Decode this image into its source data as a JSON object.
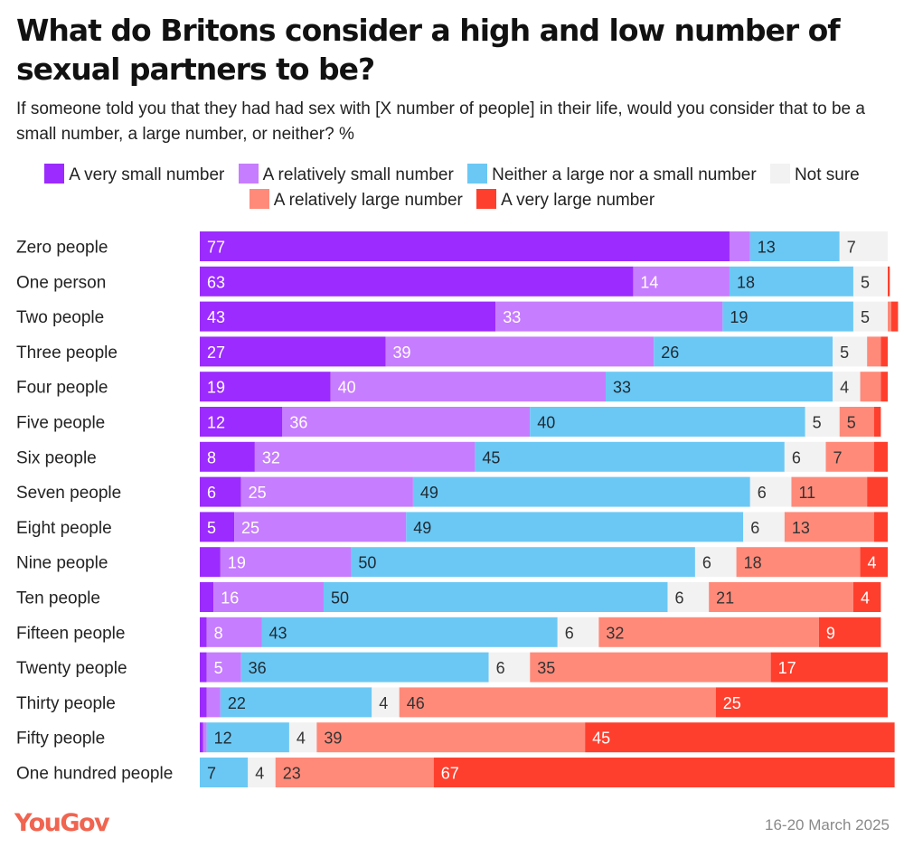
{
  "header": {
    "title": "What do Britons consider a high and low number of sexual partners to be?",
    "subtitle": "If someone told you that they had had sex with [X number of people] in their life, would you consider that to be a small number, a large number, or neither? %"
  },
  "footer": {
    "logo": "YouGov",
    "date": "16-20 March 2025"
  },
  "chart_data": {
    "type": "bar",
    "orientation": "horizontal",
    "stacked": true,
    "title": "What do Britons consider a high and low number of sexual partners to be?",
    "xlabel": "",
    "ylabel": "",
    "xlim": [
      0,
      100
    ],
    "grid": false,
    "legend_position": "top",
    "categories": [
      "Zero people",
      "One person",
      "Two people",
      "Three people",
      "Four people",
      "Five people",
      "Six people",
      "Seven people",
      "Eight people",
      "Nine people",
      "Ten people",
      "Fifteen people",
      "Twenty people",
      "Thirty people",
      "Fifty people",
      "One hundred people"
    ],
    "series": [
      {
        "name": "A very small number",
        "color": "#9b2bff",
        "text_color": "#ffffff",
        "values": [
          77,
          63,
          43,
          27,
          19,
          12,
          8,
          6,
          5,
          3,
          2,
          1,
          1,
          1,
          0.5,
          0
        ],
        "labels": [
          "77",
          "63",
          "43",
          "27",
          "19",
          "12",
          "8",
          "6",
          "5",
          "",
          "",
          "",
          "",
          "",
          "",
          ""
        ]
      },
      {
        "name": "A relatively small number",
        "color": "#c77dff",
        "text_color": "#ffffff",
        "values": [
          3,
          14,
          33,
          39,
          40,
          36,
          32,
          25,
          25,
          19,
          16,
          8,
          5,
          2,
          0.5,
          0
        ],
        "labels": [
          "",
          "14",
          "33",
          "39",
          "40",
          "36",
          "32",
          "25",
          "25",
          "19",
          "16",
          "8",
          "5",
          "",
          "",
          ""
        ]
      },
      {
        "name": "Neither a large nor a small number",
        "color": "#6bc8f4",
        "text_color": "#1f2a33",
        "values": [
          13,
          18,
          19,
          26,
          33,
          40,
          45,
          49,
          49,
          50,
          50,
          43,
          36,
          22,
          12,
          7
        ],
        "labels": [
          "13",
          "18",
          "19",
          "26",
          "33",
          "40",
          "45",
          "49",
          "49",
          "50",
          "50",
          "43",
          "36",
          "22",
          "12",
          "7"
        ]
      },
      {
        "name": "Not sure",
        "color": "#f2f2f2",
        "text_color": "#333333",
        "values": [
          7,
          5,
          5,
          5,
          4,
          5,
          6,
          6,
          6,
          6,
          6,
          6,
          6,
          4,
          4,
          4
        ],
        "labels": [
          "7",
          "5",
          "5",
          "5",
          "4",
          "5",
          "6",
          "6",
          "6",
          "6",
          "6",
          "6",
          "6",
          "4",
          "4",
          "4"
        ]
      },
      {
        "name": "A relatively large number",
        "color": "#ff8a7a",
        "text_color": "#333333",
        "values": [
          0,
          0,
          0.5,
          2,
          3,
          5,
          7,
          11,
          13,
          18,
          21,
          32,
          35,
          46,
          39,
          23
        ],
        "labels": [
          "",
          "",
          "",
          "",
          "",
          "5",
          "7",
          "11",
          "13",
          "18",
          "21",
          "32",
          "35",
          "46",
          "39",
          "23"
        ]
      },
      {
        "name": "A very large number",
        "color": "#ff3f2d",
        "text_color": "#ffffff",
        "values": [
          0,
          0.3,
          1,
          1,
          1,
          1,
          2,
          3,
          2,
          4,
          4,
          9,
          17,
          25,
          45,
          67
        ],
        "labels": [
          "",
          "",
          "",
          "",
          "",
          "",
          "",
          "",
          "",
          "4",
          "4",
          "9",
          "17",
          "25",
          "45",
          "67"
        ]
      }
    ]
  }
}
